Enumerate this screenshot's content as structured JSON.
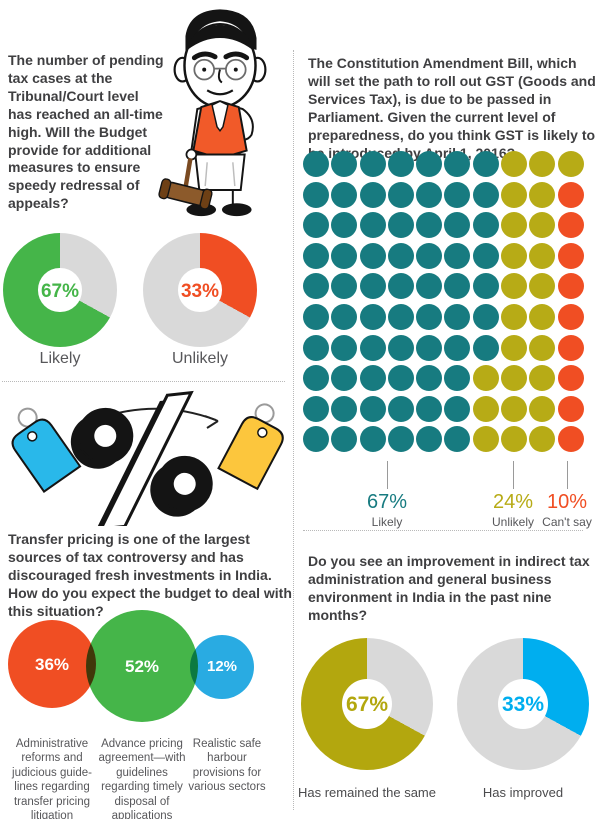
{
  "colors": {
    "teal": "#177b80",
    "olive": "#b3a70e",
    "olive_dot": "#b7ab16",
    "green": "#45b549",
    "orange": "#f04e23",
    "blue": "#29abe2",
    "cyan": "#00aeef",
    "gray_ring": "#d9d9d9",
    "text_dark": "#3f3f41",
    "text_gray": "#57575a",
    "tag_blue": "#29b8ea",
    "tag_yellow": "#fcc63d"
  },
  "sections": {
    "appeals": {
      "question": "The number of pending tax cases at the Tribunal/Court level has reached an all-time high. Will the Budget provide for additional measures to ensure speedy redressal of appeals?",
      "donuts": [
        {
          "value_label": "67%",
          "label": "Likely"
        },
        {
          "value_label": "33%",
          "label": "Unlikely"
        }
      ]
    },
    "gst": {
      "question": "The Constitution Amendment Bill, which will set the path to roll out GST (Goods and Services Tax), is due to be passed in Parliament. Given the current level of preparedness, do you think GST is likely to be introduced by April 1, 2016?",
      "legend": [
        {
          "value_label": "67%",
          "label": "Likely"
        },
        {
          "value_label": "24%",
          "label": "Unlikely"
        },
        {
          "value_label": "10%",
          "label": "Can't say"
        }
      ]
    },
    "transfer": {
      "question": "Transfer pricing is one of the largest sources of tax controversy and has discouraged fresh investments in India. How do you expect the budget to deal with this situation?",
      "bubbles": [
        {
          "value_label": "36%",
          "label": "Administrative reforms and judicious guide-lines regarding transfer pricing litigation"
        },
        {
          "value_label": "52%",
          "label": "Advance pricing agreement—with guidelines regarding timely disposal of applications"
        },
        {
          "value_label": "12%",
          "label": "Realistic safe harbour provisions for various sectors"
        }
      ]
    },
    "improvement": {
      "question": "Do you see an improvement in indirect tax administration and general business environment in India in the past nine months?",
      "donuts": [
        {
          "value_label": "67%",
          "label": "Has remained the same"
        },
        {
          "value_label": "33%",
          "label": "Has improved"
        }
      ]
    }
  },
  "donuts": [
    {
      "pct": 33,
      "color": "#45b549",
      "gray_leads": true
    },
    {
      "pct": 33,
      "color": "#f04e23",
      "gray_leads": false
    },
    {
      "pct": 33,
      "color": "#b3a70e",
      "gray_leads": true
    },
    {
      "pct": 33,
      "color": "#00aeef",
      "gray_leads": false
    }
  ],
  "chart_data": [
    {
      "type": "pie",
      "variant": "two-donuts",
      "title": "The number of pending tax cases at the Tribunal/Court level has reached an all-time high. Will the Budget provide for additional measures to ensure speedy redressal of appeals?",
      "categories": [
        "Likely",
        "Unlikely"
      ],
      "values": [
        67,
        33
      ],
      "unit": "%",
      "colors": [
        "#45b549",
        "#f04e23"
      ],
      "remainder_color": "#d9d9d9"
    },
    {
      "type": "pie",
      "variant": "waffle-grid-10x10",
      "title": "The Constitution Amendment Bill, which will set the path to roll out GST (Goods and Services Tax), is due to be passed in Parliament. Given the current level of preparedness, do you think GST is likely to be introduced by April 1, 2016?",
      "categories": [
        "Likely",
        "Unlikely",
        "Can't say"
      ],
      "values": [
        67,
        24,
        10
      ],
      "unit": "%",
      "colors": [
        "#177b80",
        "#b7ab16",
        "#f04e23"
      ],
      "grid_color_key": {
        "T": "Likely",
        "Y": "Unlikely",
        "R": "Can't say"
      },
      "dot_counts": {
        "Likely": 67,
        "Unlikely": 24,
        "Can't say": 9
      },
      "grid_rows": [
        "TTTTTTTYYY",
        "TTTTTTTYYR",
        "TTTTTTTYYR",
        "TTTTTTTYYR",
        "TTTTTTTYYR",
        "TTTTTTTYYR",
        "TTTTTTTYYR",
        "TTTTTTYYYR",
        "TTTTTTYYYR",
        "TTTTTTYYYR"
      ]
    },
    {
      "type": "pie",
      "variant": "proportional-bubbles",
      "title": "Transfer pricing is one of the largest sources of tax controversy and has discouraged fresh investments in India. How do you expect the budget to deal with this situation?",
      "categories": [
        "Administrative reforms and judicious guide-lines regarding transfer pricing litigation",
        "Advance pricing agreement—with guidelines regarding timely disposal of applications",
        "Realistic safe harbour provisions for various sectors"
      ],
      "values": [
        36,
        52,
        12
      ],
      "unit": "%",
      "colors": [
        "#f04e23",
        "#45b549",
        "#29abe2"
      ]
    },
    {
      "type": "pie",
      "variant": "two-donuts",
      "title": "Do you see an improvement in indirect tax administration and general business environment in India in the past nine months?",
      "categories": [
        "Has remained the same",
        "Has improved"
      ],
      "values": [
        67,
        33
      ],
      "unit": "%",
      "colors": [
        "#b3a70e",
        "#00aeef"
      ],
      "remainder_color": "#d9d9d9"
    }
  ]
}
